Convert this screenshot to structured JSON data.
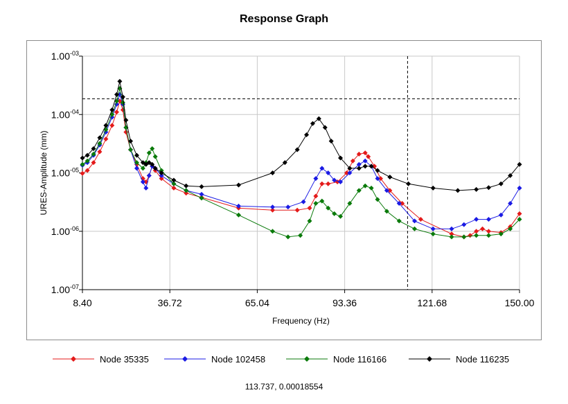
{
  "chart_data": {
    "type": "line",
    "title": "Response Graph",
    "xlabel": "Frequency (Hz)",
    "ylabel": "URES-Amplitude (mm)",
    "xlim": [
      8.4,
      150.0
    ],
    "ylim": [
      1e-07,
      0.001
    ],
    "yscale": "log",
    "grid": true,
    "legend_position": "bottom",
    "x_ticks": [
      8.4,
      36.72,
      65.04,
      93.36,
      121.68,
      150.0
    ],
    "x_tick_labels": [
      "8.40",
      "36.72",
      "65.04",
      "93.36",
      "121.68",
      "150.00"
    ],
    "y_ticks": [
      1e-07,
      1e-06,
      1e-05,
      0.0001,
      0.001
    ],
    "y_tick_labels": [
      {
        "base": "1.00",
        "exp": "-07"
      },
      {
        "base": "1.00",
        "exp": "-06"
      },
      {
        "base": "1.00",
        "exp": "-05"
      },
      {
        "base": "1.00",
        "exp": "-04"
      },
      {
        "base": "1.00",
        "exp": "-03"
      }
    ],
    "cursor": {
      "x": 113.737,
      "y": 0.00018554
    },
    "series": [
      {
        "name": "Node 35335",
        "color": "#e41a1a",
        "points": [
          [
            8.4,
            9.8e-06
          ],
          [
            10,
            1.1e-05
          ],
          [
            12,
            1.5e-05
          ],
          [
            14,
            2.3e-05
          ],
          [
            16,
            3.8e-05
          ],
          [
            18,
            6.5e-05
          ],
          [
            19.5,
            0.00011
          ],
          [
            20.5,
            0.00017
          ],
          [
            21.5,
            0.00012
          ],
          [
            22.5,
            5e-05
          ],
          [
            24,
            2.5e-05
          ],
          [
            26,
            1.4e-05
          ],
          [
            28,
            8e-06
          ],
          [
            29,
            7e-06
          ],
          [
            30,
            9e-06
          ],
          [
            31,
            1.3e-05
          ],
          [
            32,
            1.1e-05
          ],
          [
            34,
            8e-06
          ],
          [
            38,
            5.5e-06
          ],
          [
            42,
            4.5e-06
          ],
          [
            47,
            3.8e-06
          ],
          [
            59,
            2.5e-06
          ],
          [
            70,
            2.3e-06
          ],
          [
            78,
            2.3e-06
          ],
          [
            82,
            2.5e-06
          ],
          [
            84,
            4e-06
          ],
          [
            86,
            6.5e-06
          ],
          [
            88,
            6.5e-06
          ],
          [
            91,
            7e-06
          ],
          [
            94,
            1e-05
          ],
          [
            96,
            1.6e-05
          ],
          [
            98,
            2.1e-05
          ],
          [
            100,
            2.2e-05
          ],
          [
            101,
            1.9e-05
          ],
          [
            103,
            1.3e-05
          ],
          [
            105,
            8e-06
          ],
          [
            108,
            5e-06
          ],
          [
            112,
            3e-06
          ],
          [
            118,
            1.6e-06
          ],
          [
            128,
            9e-07
          ],
          [
            132,
            8e-07
          ],
          [
            134,
            8.5e-07
          ],
          [
            136,
            1e-06
          ],
          [
            138,
            1.1e-06
          ],
          [
            140,
            1e-06
          ],
          [
            144,
            9.5e-07
          ],
          [
            147,
            1.2e-06
          ],
          [
            150,
            2e-06
          ]
        ]
      },
      {
        "name": "Node 102458",
        "color": "#1a1ae4",
        "points": [
          [
            8.4,
            1.35e-05
          ],
          [
            10,
            1.5e-05
          ],
          [
            12,
            2e-05
          ],
          [
            14,
            3e-05
          ],
          [
            16,
            5e-05
          ],
          [
            18,
            9e-05
          ],
          [
            19.5,
            0.00015
          ],
          [
            20.5,
            0.00022
          ],
          [
            21.5,
            0.00015
          ],
          [
            22.5,
            6e-05
          ],
          [
            24,
            2.5e-05
          ],
          [
            26,
            1.2e-05
          ],
          [
            28,
            7e-06
          ],
          [
            29,
            5.5e-06
          ],
          [
            30,
            9e-06
          ],
          [
            31,
            1.3e-05
          ],
          [
            32,
            1.2e-05
          ],
          [
            34,
            9e-06
          ],
          [
            38,
            6.5e-06
          ],
          [
            42,
            5e-06
          ],
          [
            47,
            4.3e-06
          ],
          [
            59,
            2.7e-06
          ],
          [
            70,
            2.6e-06
          ],
          [
            75,
            2.6e-06
          ],
          [
            80,
            3.2e-06
          ],
          [
            84,
            8e-06
          ],
          [
            86,
            1.2e-05
          ],
          [
            88,
            1e-05
          ],
          [
            90,
            7.5e-06
          ],
          [
            92,
            7e-06
          ],
          [
            95,
            1e-05
          ],
          [
            98,
            1.4e-05
          ],
          [
            100,
            1.6e-05
          ],
          [
            102,
            1.3e-05
          ],
          [
            104,
            8e-06
          ],
          [
            107,
            5e-06
          ],
          [
            111,
            3e-06
          ],
          [
            116,
            1.5e-06
          ],
          [
            122,
            1.1e-06
          ],
          [
            128,
            1.1e-06
          ],
          [
            132,
            1.3e-06
          ],
          [
            136,
            1.6e-06
          ],
          [
            140,
            1.6e-06
          ],
          [
            144,
            1.9e-06
          ],
          [
            147,
            3e-06
          ],
          [
            150,
            5.5e-06
          ]
        ]
      },
      {
        "name": "Node 116166",
        "color": "#0a7a0a",
        "points": [
          [
            8.4,
            1.4e-05
          ],
          [
            10,
            1.6e-05
          ],
          [
            12,
            2.1e-05
          ],
          [
            14,
            3.2e-05
          ],
          [
            16,
            5.5e-05
          ],
          [
            18,
            0.0001
          ],
          [
            19.5,
            0.00017
          ],
          [
            20.5,
            0.00028
          ],
          [
            21.5,
            0.00016
          ],
          [
            22.5,
            6e-05
          ],
          [
            24,
            2.5e-05
          ],
          [
            26,
            1.5e-05
          ],
          [
            28,
            1.2e-05
          ],
          [
            29,
            1.5e-05
          ],
          [
            30,
            2.2e-05
          ],
          [
            31,
            2.6e-05
          ],
          [
            32,
            1.9e-05
          ],
          [
            34,
            1.1e-05
          ],
          [
            38,
            6.5e-06
          ],
          [
            42,
            5e-06
          ],
          [
            47,
            3.7e-06
          ],
          [
            59,
            1.9e-06
          ],
          [
            70,
            1e-06
          ],
          [
            75,
            8e-07
          ],
          [
            79,
            8.5e-07
          ],
          [
            82,
            1.5e-06
          ],
          [
            84,
            3e-06
          ],
          [
            86,
            3.3e-06
          ],
          [
            88,
            2.5e-06
          ],
          [
            90,
            2e-06
          ],
          [
            92,
            1.8e-06
          ],
          [
            95,
            3e-06
          ],
          [
            98,
            5e-06
          ],
          [
            100,
            6e-06
          ],
          [
            102,
            5.5e-06
          ],
          [
            104,
            3.5e-06
          ],
          [
            107,
            2.2e-06
          ],
          [
            111,
            1.5e-06
          ],
          [
            116,
            1.1e-06
          ],
          [
            122,
            9e-07
          ],
          [
            128,
            8e-07
          ],
          [
            132,
            8e-07
          ],
          [
            136,
            8.5e-07
          ],
          [
            140,
            8.5e-07
          ],
          [
            144,
            9e-07
          ],
          [
            147,
            1.1e-06
          ],
          [
            150,
            1.6e-06
          ]
        ]
      },
      {
        "name": "Node 116235",
        "color": "#000000",
        "points": [
          [
            8.4,
            1.8e-05
          ],
          [
            10,
            2e-05
          ],
          [
            12,
            2.6e-05
          ],
          [
            14,
            4e-05
          ],
          [
            16,
            6.5e-05
          ],
          [
            18,
            0.00012
          ],
          [
            19.5,
            0.00022
          ],
          [
            20.5,
            0.00037
          ],
          [
            21.5,
            0.0002
          ],
          [
            22.5,
            8e-05
          ],
          [
            24,
            3.5e-05
          ],
          [
            26,
            2e-05
          ],
          [
            28,
            1.5e-05
          ],
          [
            29,
            1.4e-05
          ],
          [
            30,
            1.5e-05
          ],
          [
            31,
            1.4e-05
          ],
          [
            32,
            1.2e-05
          ],
          [
            34,
            1e-05
          ],
          [
            38,
            7.5e-06
          ],
          [
            42,
            6e-06
          ],
          [
            47,
            5.8e-06
          ],
          [
            59,
            6.2e-06
          ],
          [
            70,
            1e-05
          ],
          [
            74,
            1.5e-05
          ],
          [
            78,
            2.5e-05
          ],
          [
            81,
            4.5e-05
          ],
          [
            83,
            7e-05
          ],
          [
            85,
            8.5e-05
          ],
          [
            87,
            6e-05
          ],
          [
            89,
            3.5e-05
          ],
          [
            92,
            1.8e-05
          ],
          [
            95,
            1.2e-05
          ],
          [
            98,
            1.2e-05
          ],
          [
            100,
            1.3e-05
          ],
          [
            102,
            1.3e-05
          ],
          [
            104,
            1.1e-05
          ],
          [
            108,
            8.5e-06
          ],
          [
            114,
            6.5e-06
          ],
          [
            122,
            5.5e-06
          ],
          [
            130,
            5e-06
          ],
          [
            136,
            5.2e-06
          ],
          [
            140,
            5.6e-06
          ],
          [
            144,
            6.5e-06
          ],
          [
            147,
            9e-06
          ],
          [
            150,
            1.4e-05
          ]
        ]
      }
    ]
  },
  "legend": [
    {
      "label": "Node 35335",
      "color": "#e41a1a"
    },
    {
      "label": "Node 102458",
      "color": "#1a1ae4"
    },
    {
      "label": "Node 116166",
      "color": "#0a7a0a"
    },
    {
      "label": "Node 116235",
      "color": "#000000"
    }
  ],
  "cursor_readout": "113.737, 0.00018554"
}
